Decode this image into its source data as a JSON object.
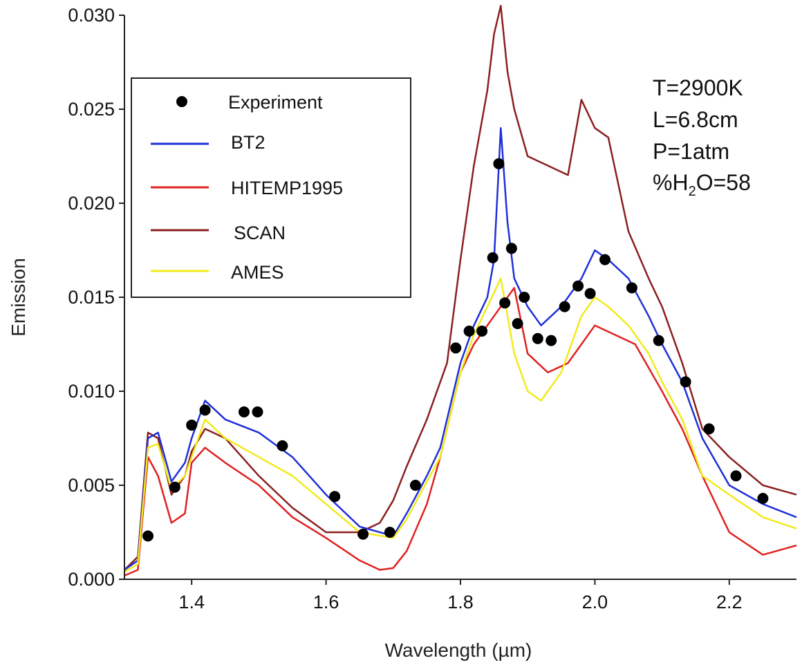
{
  "chart_data": {
    "type": "line",
    "title": "",
    "xlabel": "Wavelength (µm)",
    "ylabel": "Emission",
    "xlim": [
      1.3,
      2.3
    ],
    "ylim": [
      0.0,
      0.03
    ],
    "x_ticks": [
      1.4,
      1.6,
      1.8,
      2.0,
      2.2
    ],
    "x_tick_labels": [
      "1.4",
      "1.6",
      "1.8",
      "2.0",
      "2.2"
    ],
    "y_ticks": [
      0.0,
      0.005,
      0.01,
      0.015,
      0.02,
      0.025,
      0.03
    ],
    "y_tick_labels": [
      "0.000",
      "0.005",
      "0.010",
      "0.015",
      "0.020",
      "0.025",
      "0.030"
    ],
    "grid": false,
    "legend_position": "top-left",
    "annotations": [
      "T=2900K",
      "L=6.8cm",
      "P=1atm",
      "%H",
      "2",
      "O=58"
    ],
    "series": [
      {
        "name": "Experiment",
        "kind": "scatter",
        "color": "#000000",
        "x": [
          1.335,
          1.375,
          1.4,
          1.42,
          1.478,
          1.498,
          1.535,
          1.613,
          1.655,
          1.695,
          1.733,
          1.793,
          1.813,
          1.832,
          1.848,
          1.857,
          1.866,
          1.876,
          1.885,
          1.895,
          1.915,
          1.935,
          1.955,
          1.975,
          1.993,
          2.015,
          2.055,
          2.095,
          2.135,
          2.17,
          2.21,
          2.25
        ],
        "y": [
          0.0023,
          0.0049,
          0.0082,
          0.009,
          0.0089,
          0.0089,
          0.0071,
          0.0044,
          0.0024,
          0.0025,
          0.005,
          0.0123,
          0.0132,
          0.0132,
          0.0171,
          0.0221,
          0.0147,
          0.0176,
          0.0136,
          0.015,
          0.0128,
          0.0127,
          0.0145,
          0.0156,
          0.0152,
          0.017,
          0.0155,
          0.0127,
          0.0105,
          0.008,
          0.0055,
          0.0043
        ]
      },
      {
        "name": "BT2",
        "kind": "line",
        "color": "#1f2fd8",
        "x": [
          1.3,
          1.32,
          1.335,
          1.35,
          1.37,
          1.39,
          1.4,
          1.42,
          1.45,
          1.5,
          1.55,
          1.6,
          1.65,
          1.7,
          1.72,
          1.75,
          1.77,
          1.8,
          1.82,
          1.84,
          1.85,
          1.86,
          1.87,
          1.88,
          1.9,
          1.92,
          1.95,
          1.98,
          2.0,
          2.02,
          2.05,
          2.08,
          2.1,
          2.13,
          2.16,
          2.2,
          2.25,
          2.3
        ],
        "y": [
          0.0005,
          0.001,
          0.0075,
          0.0078,
          0.0052,
          0.0062,
          0.0075,
          0.0095,
          0.0085,
          0.0078,
          0.0065,
          0.0045,
          0.0028,
          0.0023,
          0.0035,
          0.0055,
          0.007,
          0.0115,
          0.0135,
          0.015,
          0.017,
          0.024,
          0.019,
          0.016,
          0.0145,
          0.0135,
          0.0145,
          0.016,
          0.0175,
          0.017,
          0.016,
          0.014,
          0.0125,
          0.0105,
          0.0075,
          0.005,
          0.004,
          0.0033
        ]
      },
      {
        "name": "HITEMP1995",
        "kind": "line",
        "color": "#e02020",
        "x": [
          1.3,
          1.32,
          1.335,
          1.35,
          1.37,
          1.39,
          1.4,
          1.42,
          1.45,
          1.5,
          1.55,
          1.6,
          1.65,
          1.68,
          1.7,
          1.72,
          1.75,
          1.77,
          1.8,
          1.82,
          1.85,
          1.86,
          1.88,
          1.9,
          1.93,
          1.96,
          2.0,
          2.03,
          2.06,
          2.1,
          2.13,
          2.16,
          2.2,
          2.25,
          2.3
        ],
        "y": [
          0.0002,
          0.0005,
          0.0065,
          0.0055,
          0.003,
          0.0035,
          0.0062,
          0.007,
          0.0062,
          0.005,
          0.0033,
          0.0022,
          0.001,
          0.0005,
          0.0006,
          0.0015,
          0.004,
          0.0065,
          0.011,
          0.0125,
          0.014,
          0.0145,
          0.0155,
          0.012,
          0.011,
          0.0115,
          0.0135,
          0.013,
          0.0125,
          0.01,
          0.008,
          0.0055,
          0.0025,
          0.0013,
          0.0018
        ]
      },
      {
        "name": "SCAN",
        "kind": "line",
        "color": "#8b1f1f",
        "x": [
          1.3,
          1.32,
          1.335,
          1.35,
          1.37,
          1.39,
          1.4,
          1.42,
          1.45,
          1.5,
          1.55,
          1.6,
          1.65,
          1.68,
          1.7,
          1.72,
          1.75,
          1.78,
          1.8,
          1.82,
          1.84,
          1.85,
          1.86,
          1.87,
          1.88,
          1.9,
          1.93,
          1.96,
          1.98,
          2.0,
          2.02,
          2.05,
          2.08,
          2.1,
          2.13,
          2.16,
          2.2,
          2.25,
          2.3
        ],
        "y": [
          0.0005,
          0.0012,
          0.0078,
          0.0075,
          0.0045,
          0.0055,
          0.0068,
          0.008,
          0.0075,
          0.0055,
          0.0038,
          0.0025,
          0.0025,
          0.003,
          0.0042,
          0.006,
          0.0085,
          0.0115,
          0.017,
          0.022,
          0.026,
          0.029,
          0.0305,
          0.027,
          0.025,
          0.0225,
          0.022,
          0.0215,
          0.0255,
          0.024,
          0.0235,
          0.0185,
          0.016,
          0.0145,
          0.0115,
          0.008,
          0.0065,
          0.005,
          0.0045
        ]
      },
      {
        "name": "AMES",
        "kind": "line",
        "color": "#f2ea1a",
        "x": [
          1.3,
          1.32,
          1.335,
          1.35,
          1.37,
          1.39,
          1.4,
          1.42,
          1.45,
          1.5,
          1.55,
          1.6,
          1.65,
          1.7,
          1.72,
          1.75,
          1.77,
          1.8,
          1.82,
          1.84,
          1.86,
          1.88,
          1.9,
          1.92,
          1.95,
          1.98,
          2.0,
          2.02,
          2.05,
          2.08,
          2.1,
          2.13,
          2.16,
          2.2,
          2.25,
          2.3
        ],
        "y": [
          0.0004,
          0.0008,
          0.007,
          0.0072,
          0.0048,
          0.0055,
          0.0065,
          0.0085,
          0.0075,
          0.0065,
          0.0055,
          0.004,
          0.0025,
          0.0022,
          0.0032,
          0.0052,
          0.0065,
          0.011,
          0.013,
          0.0145,
          0.016,
          0.012,
          0.01,
          0.0095,
          0.011,
          0.014,
          0.015,
          0.0145,
          0.0135,
          0.012,
          0.0105,
          0.0085,
          0.0055,
          0.0045,
          0.0033,
          0.0027
        ]
      }
    ]
  }
}
